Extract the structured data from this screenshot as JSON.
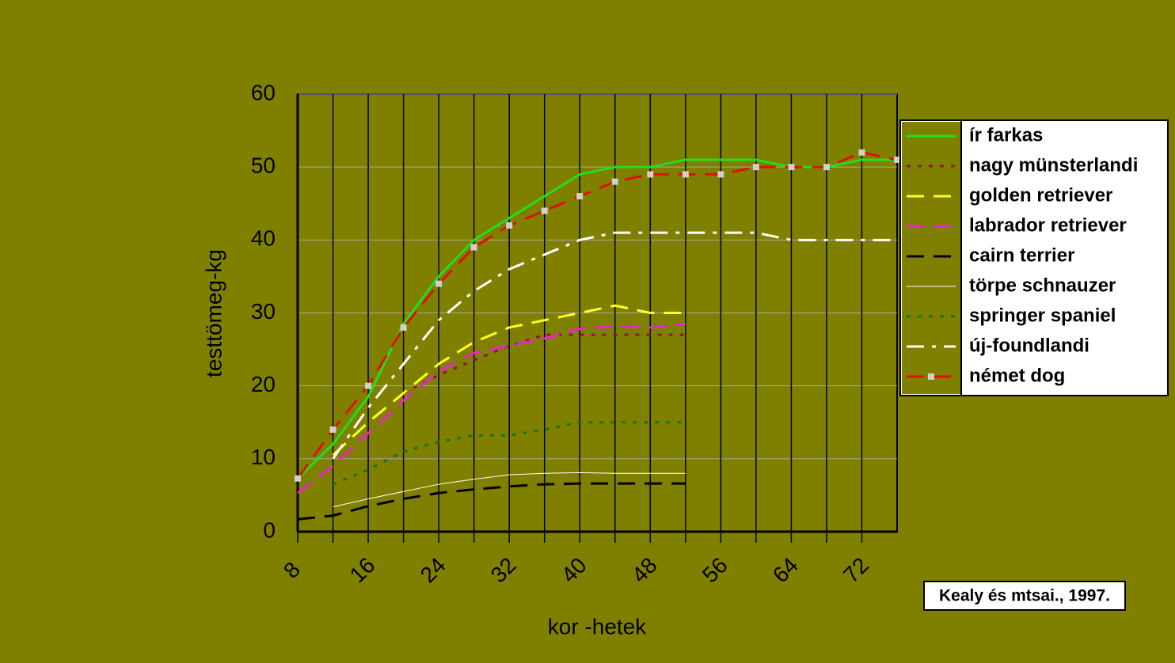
{
  "chart_data": {
    "type": "line",
    "x": [
      8,
      12,
      16,
      20,
      24,
      28,
      32,
      36,
      40,
      44,
      48,
      52,
      56,
      60,
      64,
      68,
      72,
      76
    ],
    "xlim": [
      8,
      76
    ],
    "xticks": [
      8,
      16,
      24,
      32,
      40,
      48,
      56,
      64,
      72
    ],
    "ylim": [
      0,
      60
    ],
    "yticks": [
      0,
      10,
      20,
      30,
      40,
      50,
      60
    ],
    "grid": true,
    "xlabel": "kor -hetek",
    "ylabel": "testtömeg-kg",
    "annotation": "Kealy és mtsai., 1997.",
    "legend": "right",
    "series": [
      {
        "name": "ír farkas",
        "color": "#22dd22",
        "dash": "solid",
        "values": [
          7.3,
          12,
          18.5,
          28.5,
          35,
          40,
          43,
          46,
          49,
          50,
          50,
          51,
          51,
          51,
          50,
          50,
          51,
          51
        ]
      },
      {
        "name": "nagy münsterlandi",
        "color": "#8b1a3a",
        "dash": "dotted",
        "values": [
          null,
          null,
          null,
          19,
          21.5,
          23.5,
          25.5,
          27,
          27,
          27,
          27,
          27,
          null,
          null,
          null,
          null,
          null,
          null
        ]
      },
      {
        "name": "golden retriever",
        "color": "#ffff22",
        "dash": "dashed",
        "values": [
          null,
          10.5,
          15,
          19,
          23,
          26,
          28,
          29,
          30,
          31,
          30,
          30,
          null,
          null,
          null,
          null,
          null,
          null
        ]
      },
      {
        "name": "labrador retriever",
        "color": "#ee22cc",
        "dash": "dashed",
        "values": [
          5.3,
          9,
          13.5,
          18,
          22,
          24.5,
          25.5,
          26.5,
          27.8,
          28.2,
          28,
          28.5,
          null,
          null,
          null,
          null,
          null,
          null
        ]
      },
      {
        "name": "cairn terrier",
        "color": "#000000",
        "dash": "dashed",
        "values": [
          1.7,
          2.2,
          3.5,
          4.5,
          5.3,
          5.8,
          6.2,
          6.5,
          6.6,
          6.6,
          6.6,
          6.6,
          null,
          null,
          null,
          null,
          null,
          null
        ]
      },
      {
        "name": "törpe schnauzer",
        "color": "#ffffff",
        "dash": "thin",
        "values": [
          null,
          3.4,
          4.5,
          5.5,
          6.5,
          7.2,
          7.8,
          8,
          8.1,
          8,
          8,
          8,
          null,
          null,
          null,
          null,
          null,
          null
        ]
      },
      {
        "name": "springer spaniel",
        "color": "#117711",
        "dash": "dotted",
        "values": [
          null,
          6.5,
          8.5,
          11,
          12.3,
          13.2,
          13.2,
          14,
          15,
          15,
          15,
          15,
          null,
          null,
          null,
          null,
          null,
          null
        ]
      },
      {
        "name": "új-foundlandi",
        "color": "#ffffff",
        "dash": "dashdot",
        "values": [
          null,
          10,
          17,
          23,
          29,
          33,
          36,
          38,
          40,
          41,
          41,
          41,
          41,
          41,
          40,
          40,
          40,
          40
        ]
      },
      {
        "name": "német dog",
        "color": "#dd1100",
        "dash": "dashed",
        "marker": "square",
        "values": [
          7.3,
          14,
          20,
          28,
          34,
          39,
          42,
          44,
          46,
          48,
          49,
          49,
          49,
          50,
          50,
          50,
          52,
          51
        ]
      }
    ]
  }
}
